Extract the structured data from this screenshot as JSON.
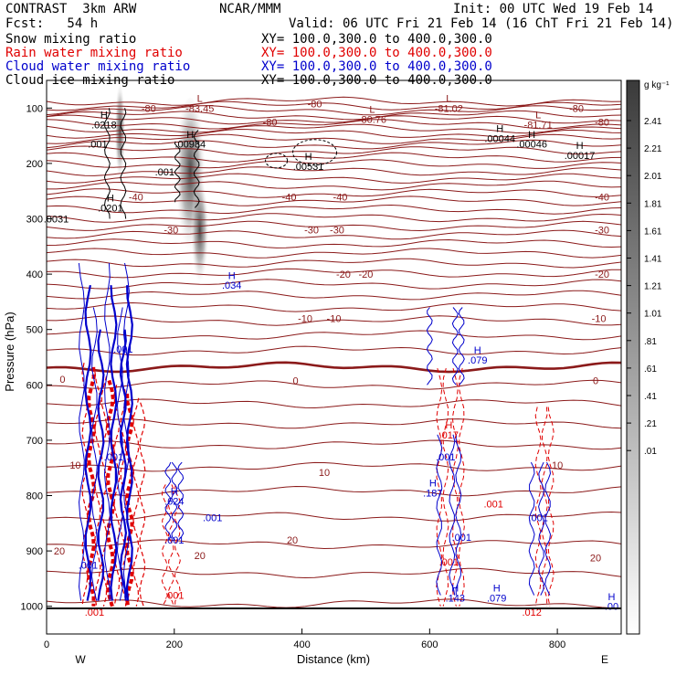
{
  "header": {
    "model": "CONTRAST  3km ARW",
    "org": "NCAR/MMM",
    "init": "Init: 00 UTC Wed 19 Feb 14",
    "fcst": "Fcst:   54 h",
    "valid": "Valid: 06 UTC Fri 21 Feb 14 (16 ChT Fri 21 Feb 14)",
    "fields": [
      {
        "name": "Snow mixing ratio",
        "xy": "XY= 100.0,300.0 to 400.0,300.0",
        "color": "#000000"
      },
      {
        "name": "Rain water mixing ratio",
        "xy": "XY= 100.0,300.0 to 400.0,300.0",
        "color": "#e00000"
      },
      {
        "name": "Cloud water mixing ratio",
        "xy": "XY= 100.0,300.0 to 400.0,300.0",
        "color": "#0000cc"
      },
      {
        "name": "Cloud ice mixing ratio",
        "xy": "XY= 100.0,300.0 to 400.0,300.0",
        "color": "#000000"
      }
    ]
  },
  "chart_data": {
    "type": "contour",
    "xlabel": "Distance (km)",
    "ylabel": "Pressure (hPa)",
    "xlim": [
      0,
      900
    ],
    "ylim": [
      1050,
      50
    ],
    "xticks": [
      0,
      200,
      400,
      600,
      800
    ],
    "yticks": [
      100,
      200,
      300,
      400,
      500,
      600,
      700,
      800,
      900,
      1000
    ],
    "x_end_labels": {
      "left": "W",
      "right": "E"
    },
    "colorbar": {
      "unit": "g kg⁻¹",
      "ticks": [
        "2.41",
        "2.21",
        "2.01",
        "1.81",
        "1.61",
        "1.41",
        "1.21",
        "1.01",
        ".81",
        ".61",
        ".41",
        ".21",
        ".01"
      ]
    },
    "temperature_contours": {
      "color": "#8b1a1a",
      "labels": [
        {
          "text": "-80",
          "x": 160,
          "p": 100
        },
        {
          "text": "-80",
          "x": 420,
          "p": 92
        },
        {
          "text": "-80",
          "x": 830,
          "p": 100
        },
        {
          "text": "-80",
          "x": 350,
          "p": 125
        },
        {
          "text": "-80",
          "x": 870,
          "p": 125
        },
        {
          "text": "-40",
          "x": 140,
          "p": 260
        },
        {
          "text": "-40",
          "x": 380,
          "p": 260
        },
        {
          "text": "-40",
          "x": 460,
          "p": 260
        },
        {
          "text": "-40",
          "x": 870,
          "p": 260
        },
        {
          "text": "-30",
          "x": 195,
          "p": 320
        },
        {
          "text": "-30",
          "x": 415,
          "p": 320
        },
        {
          "text": "-30",
          "x": 455,
          "p": 320
        },
        {
          "text": "-30",
          "x": 870,
          "p": 320
        },
        {
          "text": "-20",
          "x": 465,
          "p": 400
        },
        {
          "text": "-20",
          "x": 500,
          "p": 400
        },
        {
          "text": "-20",
          "x": 870,
          "p": 400
        },
        {
          "text": "-10",
          "x": 405,
          "p": 480
        },
        {
          "text": "-10",
          "x": 450,
          "p": 480
        },
        {
          "text": "-10",
          "x": 865,
          "p": 480
        },
        {
          "text": "0",
          "x": 25,
          "p": 590
        },
        {
          "text": "0",
          "x": 390,
          "p": 592
        },
        {
          "text": "0",
          "x": 860,
          "p": 592
        },
        {
          "text": "10",
          "x": 45,
          "p": 745
        },
        {
          "text": "10",
          "x": 435,
          "p": 758
        },
        {
          "text": "10",
          "x": 800,
          "p": 745
        },
        {
          "text": "20",
          "x": 20,
          "p": 900
        },
        {
          "text": "20",
          "x": 240,
          "p": 908
        },
        {
          "text": "20",
          "x": 385,
          "p": 880
        },
        {
          "text": "20",
          "x": 860,
          "p": 912
        }
      ]
    },
    "extrema_labels": [
      {
        "mark": "L",
        "value": "-83.45",
        "x": 240,
        "p": 100,
        "color": "#8b1a1a"
      },
      {
        "mark": "L",
        "value": "-81.02",
        "x": 630,
        "p": 100,
        "color": "#8b1a1a"
      },
      {
        "mark": "L",
        "value": "-80.76",
        "x": 510,
        "p": 120,
        "color": "#8b1a1a"
      },
      {
        "mark": "L",
        "value": "-81.71",
        "x": 770,
        "p": 130,
        "color": "#8b1a1a"
      },
      {
        "mark": "H",
        "value": ".0218",
        "x": 90,
        "p": 130,
        "color": "#000000"
      },
      {
        "mark": "H",
        "value": ".00984",
        "x": 225,
        "p": 165,
        "color": "#000000"
      },
      {
        "mark": "H",
        "value": ".00531",
        "x": 410,
        "p": 205,
        "color": "#000000"
      },
      {
        "mark": "H",
        "value": ".00044",
        "x": 710,
        "p": 155,
        "color": "#000000"
      },
      {
        "mark": "H",
        "value": ".00046",
        "x": 760,
        "p": 165,
        "color": "#000000"
      },
      {
        "mark": "H",
        "value": ".00017",
        "x": 835,
        "p": 185,
        "color": "#000000"
      },
      {
        "mark": "H",
        "value": ".0201",
        "x": 100,
        "p": 280,
        "color": "#000000"
      },
      {
        "mark": "H",
        "value": ".034",
        "x": 290,
        "p": 420,
        "color": "#0000cc"
      },
      {
        "mark": "H",
        "value": ".079",
        "x": 675,
        "p": 555,
        "color": "#0000cc"
      },
      {
        "mark": "H",
        "value": ".017",
        "x": 630,
        "p": 690,
        "color": "#e00000"
      },
      {
        "mark": "H",
        "value": ".187",
        "x": 605,
        "p": 795,
        "color": "#0000cc"
      },
      {
        "mark": "H",
        "value": ".624",
        "x": 200,
        "p": 810,
        "color": "#0000cc"
      },
      {
        "mark": "H",
        "value": ".079",
        "x": 705,
        "p": 985,
        "color": "#0000cc"
      },
      {
        "mark": "H",
        "value": ".143",
        "x": 640,
        "p": 985,
        "color": "#0000cc"
      },
      {
        "mark": "H",
        "value": ".00",
        "x": 885,
        "p": 1000,
        "color": "#0000cc"
      }
    ],
    "misc_labels": [
      {
        "text": ".001",
        "x": 80,
        "p": 165,
        "color": "#000000"
      },
      {
        "text": ".001",
        "x": 185,
        "p": 215,
        "color": "#000000"
      },
      {
        "text": ".0031",
        "x": 15,
        "p": 300,
        "color": "#000000"
      },
      {
        "text": ".001",
        "x": 120,
        "p": 535,
        "color": "#0000cc"
      },
      {
        "text": ".001",
        "x": 625,
        "p": 730,
        "color": "#0000cc"
      },
      {
        "text": ".001",
        "x": 105,
        "p": 730,
        "color": "#0000cc"
      },
      {
        "text": ".001",
        "x": 260,
        "p": 840,
        "color": "#0000cc"
      },
      {
        "text": ".001",
        "x": 770,
        "p": 840,
        "color": "#0000cc"
      },
      {
        "text": ".001",
        "x": 700,
        "p": 815,
        "color": "#e00000"
      },
      {
        "text": ".001",
        "x": 650,
        "p": 875,
        "color": "#0000cc"
      },
      {
        "text": ".001",
        "x": 200,
        "p": 880,
        "color": "#0000cc"
      },
      {
        "text": ".001",
        "x": 630,
        "p": 920,
        "color": "#e00000"
      },
      {
        "text": ".001",
        "x": 200,
        "p": 980,
        "color": "#e00000"
      },
      {
        "text": ".001",
        "x": 75,
        "p": 1010,
        "color": "#e00000"
      },
      {
        "text": ".012",
        "x": 760,
        "p": 1010,
        "color": "#e00000"
      },
      {
        "text": ".001",
        "x": 65,
        "p": 925,
        "color": "#0000cc"
      }
    ]
  }
}
